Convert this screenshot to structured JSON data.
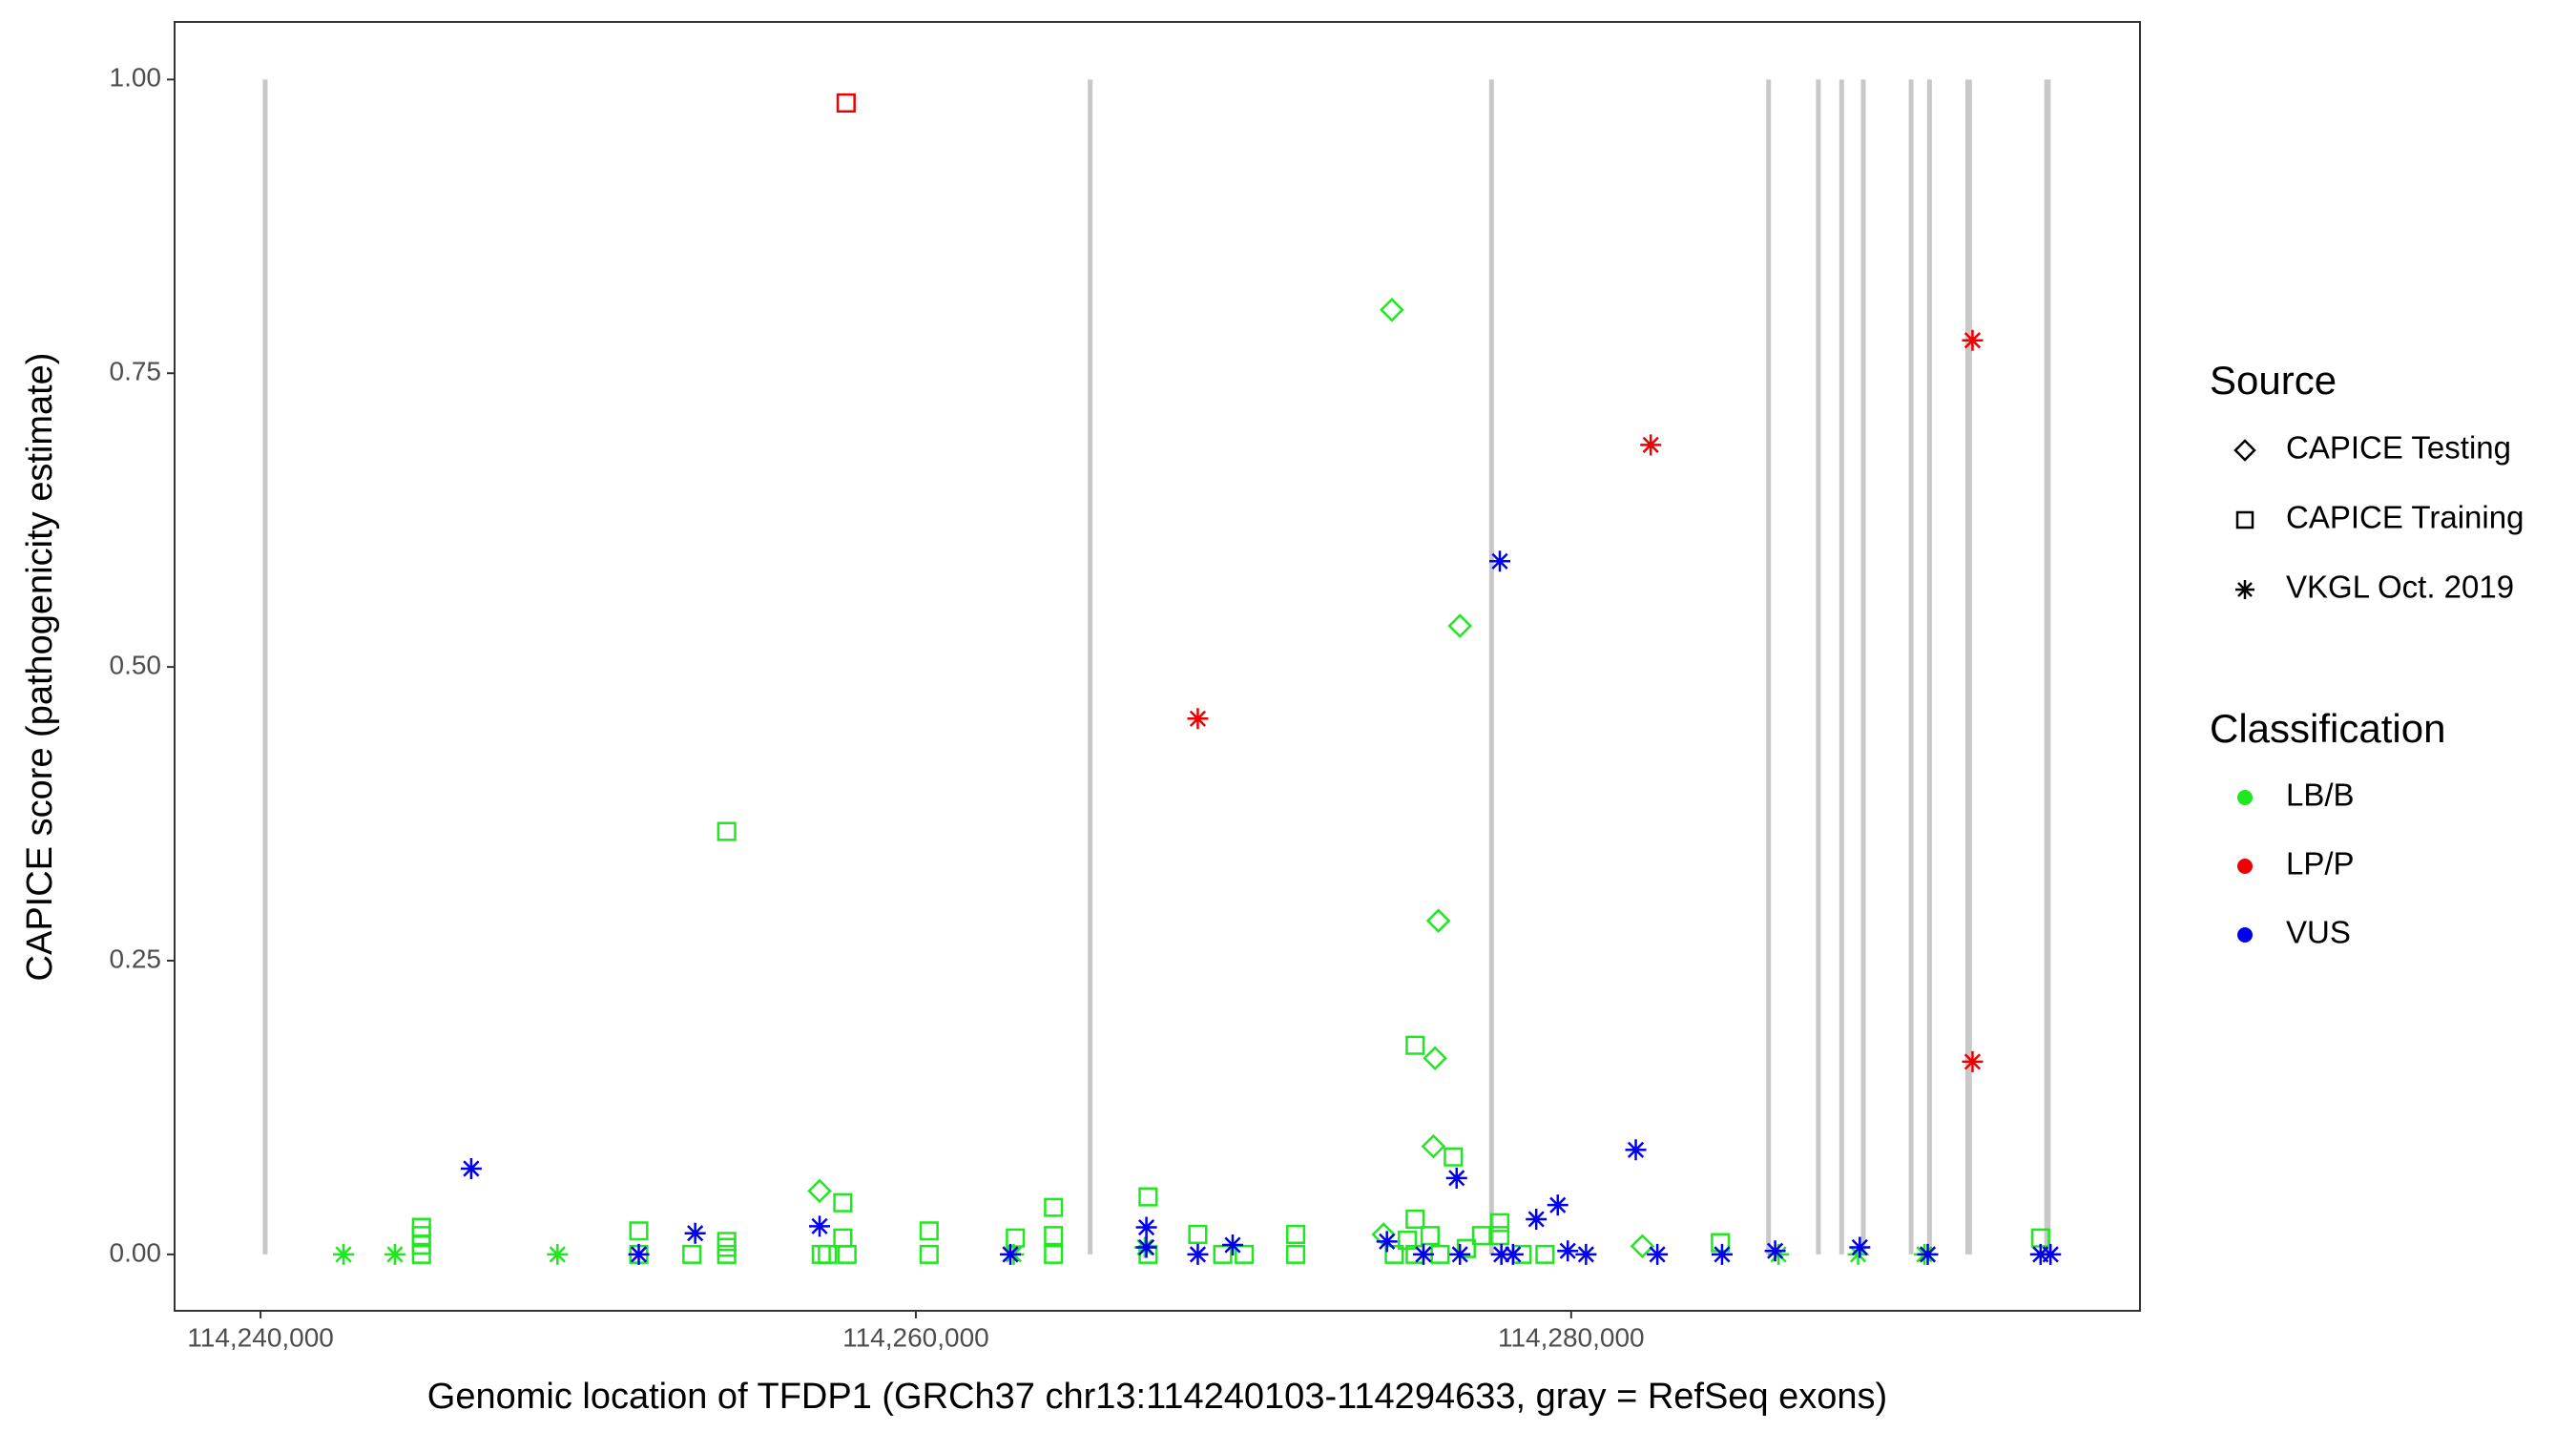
{
  "chart_data": {
    "type": "scatter",
    "x_label": "Genomic location of TFDP1 (GRCh37 chr13:114240103-114294633, gray = RefSeq exons)",
    "y_label": "CAPICE score (pathogenicity estimate)",
    "xlim": [
      114237377,
      114297360
    ],
    "ylim": [
      -0.048,
      1.049
    ],
    "xticks": [
      {
        "value": 114240000,
        "label": "114,240,000"
      },
      {
        "value": 114260000,
        "label": "114,260,000"
      },
      {
        "value": 114280000,
        "label": "114,280,000"
      }
    ],
    "yticks": [
      {
        "value": 0,
        "label": "0.00"
      },
      {
        "value": 0.25,
        "label": "0.25"
      },
      {
        "value": 0.5,
        "label": "0.50"
      },
      {
        "value": 0.75,
        "label": "0.75"
      },
      {
        "value": 1,
        "label": "1.00"
      }
    ],
    "exon_color": "#c8c8c8",
    "exons": [
      [
        114240103,
        114240180
      ],
      [
        114265280,
        114265360
      ],
      [
        114277520,
        114277620
      ],
      [
        114285980,
        114286070
      ],
      [
        114287500,
        114287590
      ],
      [
        114288210,
        114288300
      ],
      [
        114288870,
        114288960
      ],
      [
        114290330,
        114290420
      ],
      [
        114290890,
        114290980
      ],
      [
        114292030,
        114292230
      ],
      [
        114294440,
        114294633
      ]
    ],
    "legend": {
      "source": {
        "title": "Source",
        "items": [
          {
            "label": "CAPICE Testing",
            "shape": "diamond"
          },
          {
            "label": "CAPICE Training",
            "shape": "square"
          },
          {
            "label": "VKGL Oct. 2019",
            "shape": "asterisk"
          }
        ]
      },
      "classification": {
        "title": "Classification",
        "items": [
          {
            "label": "LB/B",
            "color": "#1ee81e"
          },
          {
            "label": "LP/P",
            "color": "#ee0000"
          },
          {
            "label": "VUS",
            "color": "#0000ee"
          }
        ]
      }
    },
    "series": [
      {
        "source": "CAPICE Training",
        "classification": "LB/B",
        "x": [
          114244911,
          114244911,
          114244911,
          114244911,
          114251544,
          114251544,
          114253164,
          114254227,
          114254227,
          114254227,
          114254227,
          114257113,
          114257300,
          114257771,
          114257771,
          114257900,
          114260404,
          114260404,
          114263036,
          114264201,
          114264201,
          114264201,
          114267087,
          114267087,
          114268605,
          114269365,
          114270023,
          114271592,
          114271592,
          114274600,
          114275000,
          114275238,
          114275238,
          114275238,
          114275694,
          114276000,
          114276403,
          114276800,
          114277263,
          114277822,
          114277822,
          114278500,
          114279200,
          114284554,
          114294326
        ],
        "y": [
          0.023,
          0.016,
          0.008,
          0,
          0.02,
          0,
          0,
          0.36,
          0.011,
          0.006,
          0,
          0,
          0,
          0.044,
          0.014,
          0,
          0.02,
          0,
          0.014,
          0.04,
          0.016,
          0,
          0.049,
          0,
          0.017,
          0,
          0,
          0.017,
          0,
          0,
          0.012,
          0.178,
          0.03,
          0,
          0.016,
          0,
          0.083,
          0.005,
          0.016,
          0.027,
          0.016,
          0,
          0,
          0.01,
          0.014
        ]
      },
      {
        "source": "CAPICE Training",
        "classification": "LP/P",
        "x": [
          114257872
        ],
        "y": [
          0.98
        ]
      },
      {
        "source": "CAPICE Testing",
        "classification": "LB/B",
        "x": [
          114257062,
          114274529,
          114276605,
          114275947,
          114275846,
          114275795,
          114274276,
          114282174
        ],
        "y": [
          0.054,
          0.804,
          0.535,
          0.284,
          0.167,
          0.092,
          0.017,
          0.007
        ]
      },
      {
        "source": "VKGL Oct. 2019",
        "classification": "LB/B",
        "x": [
          114242531,
          114244101,
          114249063,
          114262986,
          114266986,
          114286327,
          114288758,
          114290781
        ],
        "y": [
          0,
          0,
          0,
          0,
          0.006,
          0,
          0,
          0
        ]
      },
      {
        "source": "VKGL Oct. 2019",
        "classification": "LP/P",
        "x": [
          114268605,
          114282428,
          114292249,
          114292249
        ],
        "y": [
          0.456,
          0.689,
          0.778,
          0.164
        ]
      },
      {
        "source": "VKGL Oct. 2019",
        "classification": "VUS",
        "x": [
          114246430,
          114251544,
          114253265,
          114257062,
          114262885,
          114267036,
          114267036,
          114268605,
          114269668,
          114274377,
          114275491,
          114276504,
          114276605,
          114277822,
          114277870,
          114278225,
          114278934,
          114279591,
          114279896,
          114280453,
          114281972,
          114282630,
          114284605,
          114286225,
          114288808,
          114290882,
          114294326,
          114294630
        ],
        "y": [
          0.073,
          0,
          0.018,
          0.024,
          0,
          0.023,
          0.006,
          0,
          0.008,
          0.011,
          0,
          0.065,
          0,
          0.59,
          0,
          0,
          0.03,
          0.042,
          0.003,
          0,
          0.089,
          0,
          0,
          0.003,
          0.006,
          0,
          0,
          0
        ]
      }
    ]
  }
}
